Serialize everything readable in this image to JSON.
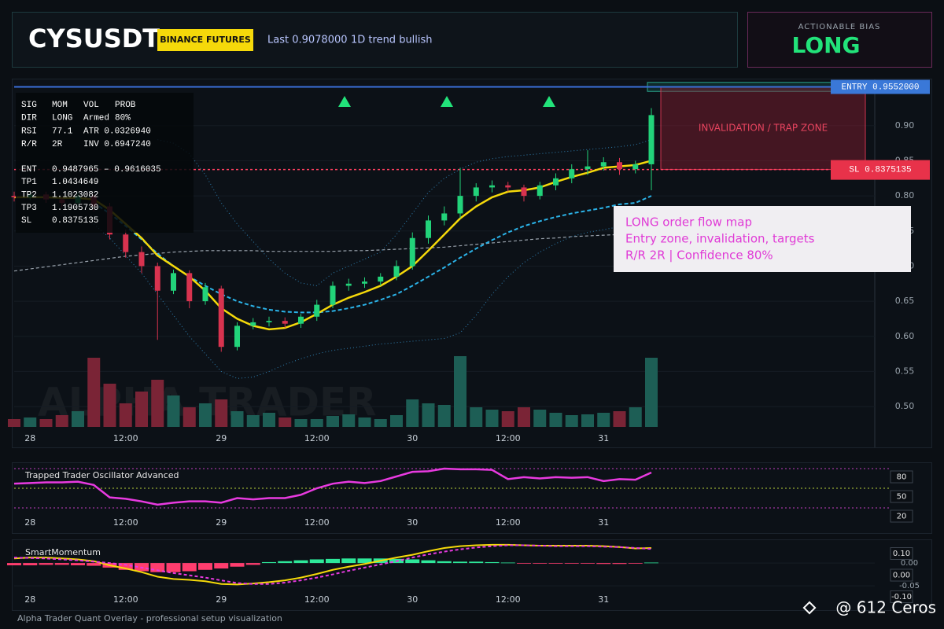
{
  "header": {
    "symbol": "CYSUSDT",
    "exchange": "BINANCE FUTURES",
    "last": "Last 0.9078000",
    "trend": "1D trend bullish"
  },
  "bias": {
    "label": "ACTIONABLE BIAS",
    "value": "LONG"
  },
  "signal_panel": {
    "stats": [
      [
        "SIG",
        "MOM",
        "VOL",
        "PROB"
      ],
      [
        "DIR",
        "LONG",
        "Armed",
        "80%"
      ],
      [
        "RSI",
        "77.1",
        "ATR 0.0326940"
      ],
      [
        "R/R",
        "2R",
        "INV 0.6947240"
      ]
    ],
    "levels": [
      [
        "ENT",
        "0.9487965 – 0.9616035"
      ],
      [
        "TP1",
        "1.0434649"
      ],
      [
        "TP2",
        "1.1023082"
      ],
      [
        "TP3",
        "1.1905730"
      ],
      [
        "SL",
        "0.8375135"
      ]
    ]
  },
  "annotation": {
    "lines": [
      "LONG order flow map",
      "Entry zone, invalidation, targets",
      "R/R 2R | Confidence 80%"
    ]
  },
  "footer": "Alpha Trader Quant Overlay - professional setup visualization",
  "credit": "@ 612 Ceros",
  "chart_data": [
    {
      "type": "candlestick",
      "watermark": "ALPHA TRADER",
      "categories": [
        null,
        "28",
        null,
        null,
        null,
        null,
        null,
        "12:00",
        null,
        null,
        null,
        null,
        null,
        "29",
        null,
        null,
        null,
        null,
        null,
        "12:00",
        null,
        null,
        null,
        null,
        null,
        "30",
        null,
        null,
        null,
        null,
        null,
        "12:00",
        null,
        null,
        null,
        null,
        null,
        "31",
        null,
        null,
        null
      ],
      "open": [
        0.8,
        0.798,
        0.802,
        0.795,
        0.79,
        0.8,
        0.785,
        0.745,
        0.72,
        0.7,
        0.665,
        0.69,
        0.65,
        0.668,
        0.585,
        0.615,
        0.62,
        0.622,
        0.618,
        0.628,
        0.645,
        0.672,
        0.675,
        0.678,
        0.685,
        0.7,
        0.74,
        0.765,
        0.775,
        0.8,
        0.812,
        0.815,
        0.812,
        0.8,
        0.815,
        0.825,
        0.838,
        0.842,
        0.848,
        0.838,
        0.845
      ],
      "high": [
        0.806,
        0.808,
        0.806,
        0.798,
        0.805,
        0.803,
        0.79,
        0.752,
        0.728,
        0.705,
        0.695,
        0.694,
        0.676,
        0.672,
        0.62,
        0.626,
        0.628,
        0.627,
        0.632,
        0.652,
        0.678,
        0.682,
        0.684,
        0.69,
        0.708,
        0.748,
        0.772,
        0.785,
        0.84,
        0.818,
        0.822,
        0.82,
        0.816,
        0.82,
        0.832,
        0.845,
        0.865,
        0.855,
        0.854,
        0.85,
        0.925
      ],
      "low": [
        0.792,
        0.794,
        0.79,
        0.784,
        0.787,
        0.778,
        0.738,
        0.712,
        0.69,
        0.595,
        0.66,
        0.64,
        0.645,
        0.578,
        0.58,
        0.61,
        0.614,
        0.612,
        0.612,
        0.622,
        0.64,
        0.665,
        0.669,
        0.672,
        0.68,
        0.695,
        0.732,
        0.758,
        0.768,
        0.792,
        0.805,
        0.806,
        0.792,
        0.795,
        0.808,
        0.818,
        0.83,
        0.836,
        0.83,
        0.832,
        0.808
      ],
      "close": [
        0.798,
        0.802,
        0.795,
        0.79,
        0.8,
        0.785,
        0.745,
        0.72,
        0.7,
        0.665,
        0.69,
        0.65,
        0.67,
        0.585,
        0.615,
        0.62,
        0.622,
        0.618,
        0.628,
        0.645,
        0.672,
        0.675,
        0.678,
        0.685,
        0.7,
        0.74,
        0.765,
        0.775,
        0.8,
        0.812,
        0.815,
        0.812,
        0.8,
        0.815,
        0.825,
        0.838,
        0.842,
        0.848,
        0.838,
        0.845,
        0.915
      ],
      "up_color": "#22d37a",
      "down_color": "#d8334f",
      "volume": [
        10,
        12,
        10,
        15,
        20,
        88,
        55,
        30,
        45,
        60,
        40,
        25,
        30,
        35,
        20,
        15,
        18,
        12,
        10,
        10,
        14,
        16,
        12,
        10,
        15,
        35,
        30,
        28,
        90,
        25,
        22,
        20,
        25,
        22,
        18,
        15,
        16,
        18,
        20,
        25,
        88
      ],
      "volume_up_color": "#1d5e55",
      "volume_down_color": "#7a2436",
      "overlays": [
        {
          "color": "#9aa3ad",
          "dash": "4 3",
          "width": 1.2,
          "values": [
            0.693,
            0.696,
            0.699,
            0.702,
            0.705,
            0.708,
            0.711,
            0.714,
            0.716,
            0.718,
            0.72,
            0.721,
            0.722,
            0.722,
            0.722,
            0.722,
            0.721,
            0.721,
            0.721,
            0.721,
            0.721,
            0.722,
            0.722,
            0.723,
            0.724,
            0.725,
            0.726,
            0.727,
            0.729,
            0.731,
            0.733,
            0.735,
            0.737,
            0.739,
            0.74,
            0.742,
            0.743,
            0.744,
            0.745,
            0.746,
            0.747
          ]
        },
        {
          "color": "#2f7fb0",
          "dash": "1 3",
          "width": 1,
          "values": [
            null,
            null,
            null,
            null,
            null,
            null,
            null,
            null,
            null,
            0.88,
            0.875,
            0.86,
            0.83,
            0.79,
            0.76,
            0.735,
            0.71,
            0.69,
            0.676,
            0.672,
            0.69,
            0.7,
            0.71,
            0.72,
            0.745,
            0.775,
            0.805,
            0.825,
            0.838,
            0.848,
            0.853,
            0.856,
            0.858,
            0.86,
            0.862,
            0.864,
            0.866,
            0.868,
            0.87,
            0.873,
            0.88
          ]
        },
        {
          "color": "#2f7fb0",
          "dash": "1 3",
          "width": 1,
          "values": [
            null,
            null,
            null,
            null,
            null,
            0.76,
            0.74,
            0.715,
            0.69,
            0.66,
            0.63,
            0.6,
            0.575,
            0.55,
            0.54,
            0.542,
            0.55,
            0.56,
            0.568,
            0.575,
            0.58,
            0.583,
            0.586,
            0.589,
            0.591,
            0.593,
            0.595,
            0.597,
            0.605,
            0.63,
            0.66,
            0.685,
            0.705,
            0.72,
            0.732,
            0.742,
            0.748,
            0.752,
            0.756,
            0.758,
            0.76
          ]
        },
        {
          "color": "#2bb3e8",
          "dash": "5 3",
          "width": 2,
          "values": [
            null,
            null,
            null,
            null,
            null,
            0.79,
            0.775,
            0.757,
            0.738,
            0.718,
            0.7,
            0.685,
            0.672,
            0.66,
            0.65,
            0.643,
            0.638,
            0.635,
            0.634,
            0.634,
            0.636,
            0.64,
            0.645,
            0.652,
            0.66,
            0.672,
            0.685,
            0.698,
            0.712,
            0.725,
            0.737,
            0.748,
            0.757,
            0.764,
            0.77,
            0.775,
            0.779,
            0.783,
            0.788,
            0.79,
            0.8
          ]
        },
        {
          "color": "#f5d90a",
          "dash": "none",
          "width": 2.5,
          "values": [
            0.798,
            0.798,
            0.798,
            0.797,
            0.797,
            0.795,
            0.78,
            0.76,
            0.74,
            0.715,
            0.7,
            0.685,
            0.665,
            0.64,
            0.625,
            0.615,
            0.61,
            0.612,
            0.62,
            0.632,
            0.645,
            0.655,
            0.663,
            0.672,
            0.685,
            0.7,
            0.722,
            0.745,
            0.768,
            0.785,
            0.798,
            0.806,
            0.808,
            0.812,
            0.82,
            0.827,
            0.833,
            0.84,
            0.842,
            0.844,
            0.85
          ]
        }
      ],
      "entry": {
        "value": 0.9552,
        "label": "ENTRY 0.9552000"
      },
      "stop": {
        "value": 0.8375135,
        "label": "SL 0.8375135"
      },
      "entry_zone": [
        0.9487965,
        0.9616035
      ],
      "trap_zone_label": "INVALIDATION / TRAP ZONE",
      "ylim": [
        0.471,
        0.958
      ],
      "yticks": [
        {
          "value": 0.5,
          "label": "0.50"
        },
        {
          "value": 0.55,
          "label": "0.55"
        },
        {
          "value": 0.6,
          "label": "0.60"
        },
        {
          "value": 0.65,
          "label": "0.65"
        },
        {
          "value": 0.7,
          "label": "0.70"
        },
        {
          "value": 0.75,
          "label": "0.75"
        },
        {
          "value": 0.8,
          "label": "0.80"
        },
        {
          "value": 0.85,
          "label": "0.85"
        },
        {
          "value": 0.9,
          "label": "0.90"
        }
      ],
      "grid": true
    },
    {
      "type": "line",
      "title": "Trapped Trader Oscillator Advanced",
      "categories": [
        null,
        "28",
        null,
        null,
        null,
        null,
        null,
        "12:00",
        null,
        null,
        null,
        null,
        null,
        "29",
        null,
        null,
        null,
        null,
        null,
        "12:00",
        null,
        null,
        null,
        null,
        null,
        "30",
        null,
        null,
        null,
        null,
        null,
        "12:00",
        null,
        null,
        null,
        null,
        null,
        "31",
        null,
        null,
        null
      ],
      "values": [
        57,
        58,
        59,
        59,
        60,
        55,
        36,
        34,
        30,
        25,
        28,
        30,
        30,
        28,
        35,
        33,
        35,
        35,
        40,
        50,
        57,
        60,
        58,
        61,
        68,
        75,
        76,
        80,
        79,
        79,
        78,
        64,
        67,
        65,
        67,
        66,
        67,
        61,
        64,
        63,
        74
      ],
      "color": "#e83ae0",
      "ylim": [
        12.8,
        87.2
      ],
      "yticks": [
        80,
        50,
        20
      ],
      "grid_colors": [
        "#c23fc0",
        "#b8d23a",
        "#c23fc0"
      ]
    },
    {
      "type": "momentum",
      "title": "SmartMomentum",
      "categories": [
        null,
        "28",
        null,
        null,
        null,
        null,
        null,
        "12:00",
        null,
        null,
        null,
        null,
        null,
        "29",
        null,
        null,
        null,
        null,
        null,
        "12:00",
        null,
        null,
        null,
        null,
        null,
        "30",
        null,
        null,
        null,
        null,
        null,
        "12:00",
        null,
        null,
        null,
        null,
        null,
        "31",
        null,
        null,
        null
      ],
      "histogram": {
        "up_color": "#2ee89a",
        "down_color": "#ff3d6e",
        "values": [
          -0.005,
          -0.005,
          -0.004,
          -0.004,
          -0.005,
          -0.006,
          -0.01,
          -0.015,
          -0.018,
          -0.02,
          -0.02,
          -0.018,
          -0.015,
          -0.012,
          -0.008,
          -0.004,
          0.002,
          0.004,
          0.006,
          0.008,
          0.009,
          0.01,
          0.01,
          0.01,
          0.009,
          0.008,
          0.006,
          0.004,
          0.003,
          0.003,
          0.002,
          0.001,
          -0.001,
          -0.001,
          -0.001,
          -0.001,
          -0.001,
          -0.002,
          -0.002,
          -0.001,
          0.001
        ]
      },
      "lines": [
        {
          "color": "#f5d90a",
          "dash": "none",
          "values": [
            0.01,
            0.012,
            0.012,
            0.01,
            0.008,
            0.004,
            -0.005,
            -0.012,
            -0.02,
            -0.03,
            -0.035,
            -0.037,
            -0.04,
            -0.046,
            -0.047,
            -0.045,
            -0.042,
            -0.038,
            -0.032,
            -0.024,
            -0.015,
            -0.008,
            -0.002,
            0.005,
            0.012,
            0.018,
            0.026,
            0.033,
            0.037,
            0.039,
            0.04,
            0.04,
            0.039,
            0.038,
            0.038,
            0.038,
            0.038,
            0.037,
            0.035,
            0.032,
            0.033
          ]
        },
        {
          "color": "#e83ae0",
          "dash": "4 3",
          "values": [
            0.012,
            0.011,
            0.01,
            0.008,
            0.006,
            0.003,
            0.0,
            -0.004,
            -0.01,
            -0.016,
            -0.022,
            -0.027,
            -0.032,
            -0.038,
            -0.044,
            -0.046,
            -0.046,
            -0.043,
            -0.038,
            -0.032,
            -0.025,
            -0.017,
            -0.01,
            -0.003,
            0.004,
            0.012,
            0.019,
            0.025,
            0.03,
            0.034,
            0.037,
            0.039,
            0.039,
            0.038,
            0.037,
            0.037,
            0.037,
            0.036,
            0.035,
            0.033,
            0.031
          ]
        }
      ],
      "readouts": [
        "0.10",
        "0.00",
        "-0.10"
      ],
      "ylim": [
        -0.093,
        0.045
      ],
      "yticks": [
        {
          "value": 0,
          "label": "0.00"
        },
        {
          "value": -0.05,
          "label": "-0.05"
        }
      ]
    }
  ]
}
